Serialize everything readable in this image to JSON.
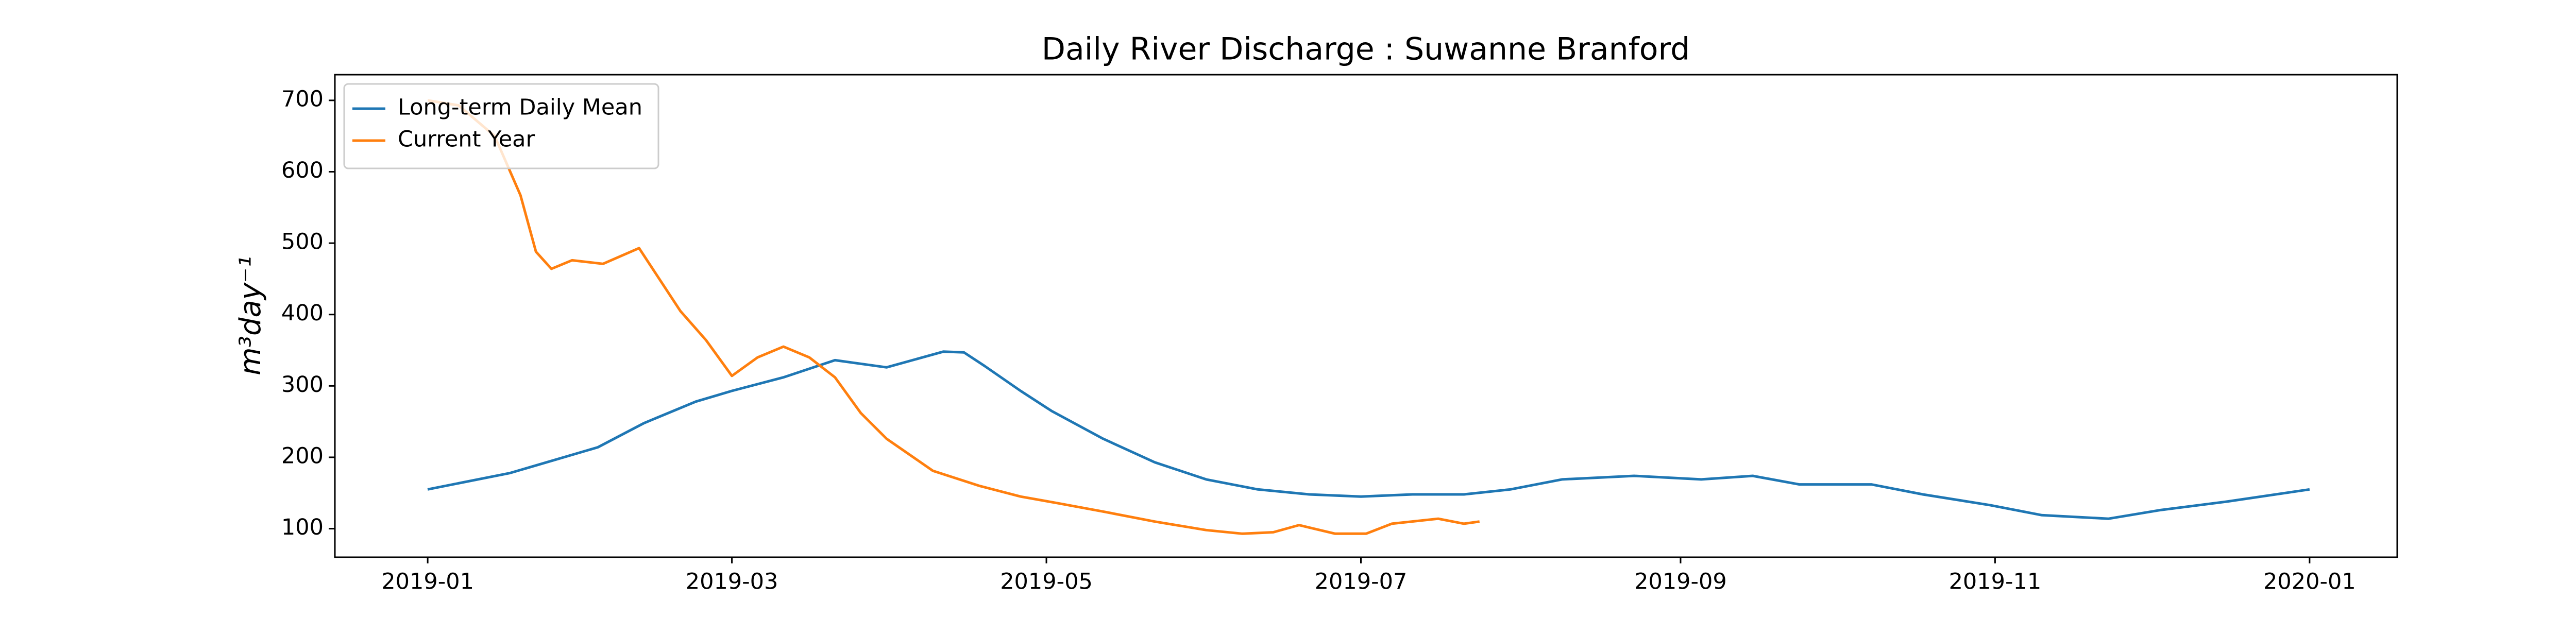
{
  "chart_data": {
    "type": "line",
    "title": "Daily River Discharge : Suwanne Branford",
    "ylabel": "m³day⁻¹",
    "xlim": [
      -18,
      382
    ],
    "ylim": [
      60,
      736
    ],
    "xticks": [
      {
        "value": 0,
        "label": "2019-01"
      },
      {
        "value": 59,
        "label": "2019-03"
      },
      {
        "value": 120,
        "label": "2019-05"
      },
      {
        "value": 181,
        "label": "2019-07"
      },
      {
        "value": 243,
        "label": "2019-09"
      },
      {
        "value": 304,
        "label": "2019-11"
      },
      {
        "value": 365,
        "label": "2020-01"
      }
    ],
    "yticks": [
      100,
      200,
      300,
      400,
      500,
      600,
      700
    ],
    "grid": false,
    "legend": "upper left",
    "series": [
      {
        "name": "Long-term Daily Mean",
        "color": "#1f77b4",
        "x": [
          0,
          16,
          33,
          42,
          52,
          59,
          69,
          79,
          89,
          95,
          100,
          104,
          108,
          115,
          121,
          131,
          141,
          151,
          161,
          171,
          181,
          191,
          201,
          210,
          220,
          234,
          247,
          257,
          266,
          280,
          290,
          303,
          313,
          326,
          336,
          349,
          365
        ],
        "values": [
          155,
          178,
          214,
          248,
          278,
          293,
          312,
          336,
          326,
          338,
          348,
          347,
          328,
          293,
          265,
          226,
          193,
          169,
          155,
          148,
          145,
          148,
          148,
          155,
          169,
          174,
          169,
          174,
          162,
          162,
          148,
          133,
          119,
          114,
          126,
          138,
          155
        ]
      },
      {
        "name": "Current Year",
        "color": "#ff7f0e",
        "x": [
          0,
          6,
          13,
          18,
          21,
          24,
          28,
          34,
          41,
          44,
          49,
          54,
          59,
          64,
          69,
          74,
          79,
          84,
          89,
          98,
          107,
          115,
          122,
          131,
          141,
          151,
          158,
          164,
          169,
          176,
          182,
          187,
          196,
          201,
          204
        ],
        "values": [
          700,
          693,
          650,
          567,
          488,
          464,
          476,
          471,
          493,
          460,
          405,
          364,
          314,
          340,
          355,
          340,
          312,
          262,
          226,
          181,
          160,
          145,
          136,
          124,
          110,
          98,
          93,
          95,
          105,
          93,
          93,
          107,
          114,
          107,
          110
        ]
      }
    ]
  }
}
